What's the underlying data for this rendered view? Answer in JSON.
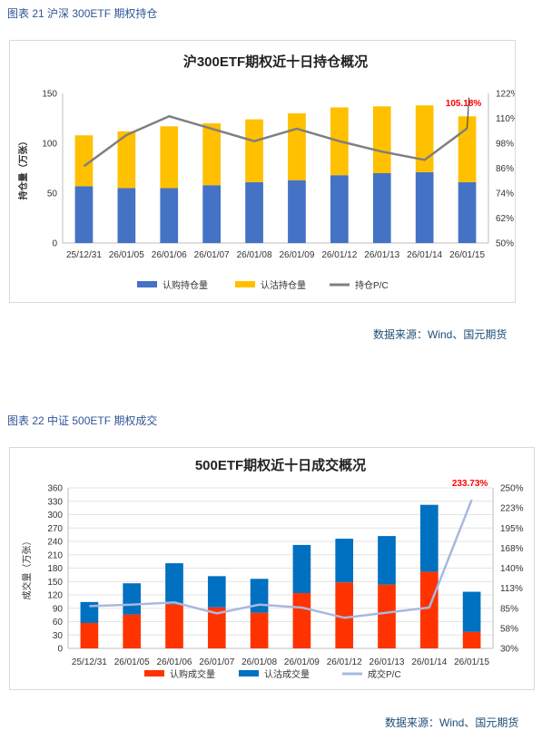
{
  "charts": [
    {
      "caption": "图表 21 沪深 300ETF 期权持仓",
      "source": "数据来源：Wind、国元期货",
      "chart_data": {
        "type": "bar",
        "stacked": true,
        "title": "沪300ETF期权近十日持仓概况",
        "ylabel": "持仓量（万张）",
        "categories": [
          "25/12/31",
          "26/01/05",
          "26/01/06",
          "26/01/07",
          "26/01/08",
          "26/01/09",
          "26/01/12",
          "26/01/13",
          "26/01/14",
          "26/01/15"
        ],
        "ylim": [
          0,
          150
        ],
        "yticks": [
          "0",
          "50",
          "100",
          "150"
        ],
        "y2lim": [
          50,
          122
        ],
        "y2ticks": [
          "50%",
          "62%",
          "74%",
          "86%",
          "98%",
          "110%",
          "122%"
        ],
        "series": [
          {
            "name": "认购持仓量",
            "axis": "left",
            "color": "#4472c4",
            "values": [
              57,
              55,
              55,
              58,
              61,
              63,
              68,
              70,
              71,
              61
            ]
          },
          {
            "name": "认沽持仓量",
            "axis": "left",
            "color": "#ffc000",
            "values": [
              51,
              57,
              62,
              62,
              63,
              67,
              68,
              67,
              67,
              66
            ]
          },
          {
            "name": "持仓P/C",
            "axis": "right",
            "type": "line",
            "color": "#7f7f7f",
            "values": [
              87,
              102,
              111,
              105,
              99,
              105,
              99,
              94,
              90,
              105.18
            ]
          }
        ],
        "annotation": {
          "text": "105.18%",
          "color": "#ff0000"
        },
        "grid": false,
        "legend": "bottom"
      }
    },
    {
      "caption": "图表 22 中证 500ETF 期权成交",
      "source": "数据来源：Wind、国元期货",
      "chart_data": {
        "type": "bar",
        "stacked": true,
        "title": "500ETF期权近十日成交概况",
        "ylabel": "成交量（万张）",
        "categories": [
          "25/12/31",
          "26/01/05",
          "26/01/06",
          "26/01/07",
          "26/01/08",
          "26/01/09",
          "26/01/12",
          "26/01/13",
          "26/01/14",
          "26/01/15"
        ],
        "ylim": [
          0,
          360
        ],
        "yticks": [
          "0",
          "30",
          "60",
          "90",
          "120",
          "150",
          "180",
          "210",
          "240",
          "270",
          "300",
          "330",
          "360"
        ],
        "y2lim": [
          30,
          250
        ],
        "y2ticks": [
          "30%",
          "58%",
          "85%",
          "113%",
          "140%",
          "168%",
          "195%",
          "223%",
          "250%"
        ],
        "series": [
          {
            "name": "认购成交量",
            "axis": "left",
            "color": "#ff3300",
            "values": [
              57,
              76,
              99,
              92,
              80,
              124,
              148,
              143,
              172,
              37
            ]
          },
          {
            "name": "认沽成交量",
            "axis": "left",
            "color": "#0070c0",
            "values": [
              47,
              70,
              92,
              70,
              76,
              108,
              98,
              109,
              150,
              90
            ]
          },
          {
            "name": "成交P/C",
            "axis": "right",
            "type": "line",
            "color": "#a9b8e0",
            "values": [
              88,
              90,
              93,
              78,
              90,
              86,
              72,
              79,
              86,
              233.73
            ]
          }
        ],
        "annotation": {
          "text": "233.73%",
          "color": "#ff0000"
        },
        "grid": true,
        "legend": "bottom"
      }
    }
  ]
}
